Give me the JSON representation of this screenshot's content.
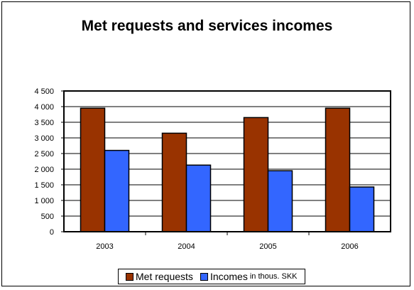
{
  "chart_data": {
    "type": "bar",
    "title": "Met requests and services incomes",
    "categories": [
      "2003",
      "2004",
      "2005",
      "2006"
    ],
    "series": [
      {
        "name": "Met requests",
        "values": [
          3950,
          3150,
          3650,
          3950
        ],
        "color": "#993300"
      },
      {
        "name": "Incomes in thous. SKK",
        "values": [
          2600,
          2130,
          1950,
          1430
        ],
        "color": "#3366ff"
      }
    ],
    "ylim": [
      0,
      4500
    ],
    "yticks": [
      0,
      500,
      1000,
      1500,
      2000,
      2500,
      3000,
      3500,
      4000,
      4500
    ],
    "ytick_labels": [
      "0",
      "500",
      "1 000",
      "1 500",
      "2 000",
      "2 500",
      "3 000",
      "3 500",
      "4 000",
      "4 500"
    ],
    "grid": true,
    "legend_position": "bottom"
  },
  "legend": {
    "item1_label": "Met requests",
    "item2_main": "Incomes",
    "item2_small": "in thous. SKK"
  }
}
